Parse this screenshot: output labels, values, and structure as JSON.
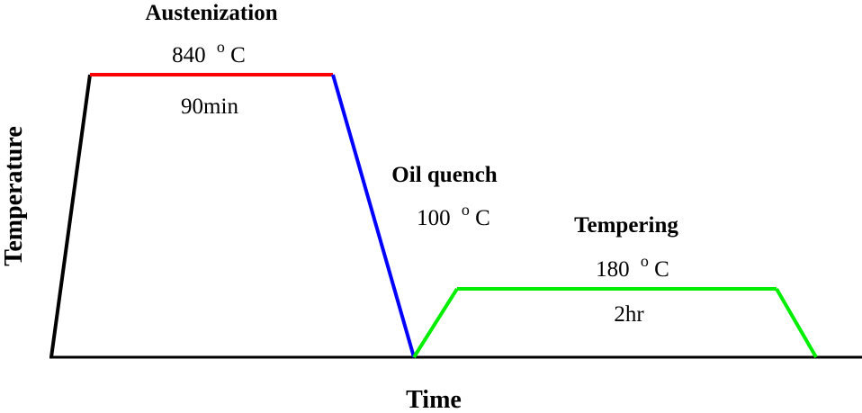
{
  "axes": {
    "x_label": "Time",
    "y_label": "Temperature"
  },
  "stages": {
    "austenization": {
      "title": "Austenization",
      "temp_value": "840",
      "degree_symbol": "o",
      "temp_unit": "C",
      "duration": "90min",
      "color": "#ff0000"
    },
    "quench": {
      "title": "Oil quench",
      "temp_value": "100",
      "degree_symbol": "o",
      "temp_unit": "C",
      "color": "#0000ff"
    },
    "tempering": {
      "title": "Tempering",
      "temp_value": "180",
      "degree_symbol": "o",
      "temp_unit": "C",
      "duration": "2hr",
      "color": "#00ee00"
    }
  },
  "colors": {
    "heating": "#000000",
    "axis": "#000000"
  }
}
